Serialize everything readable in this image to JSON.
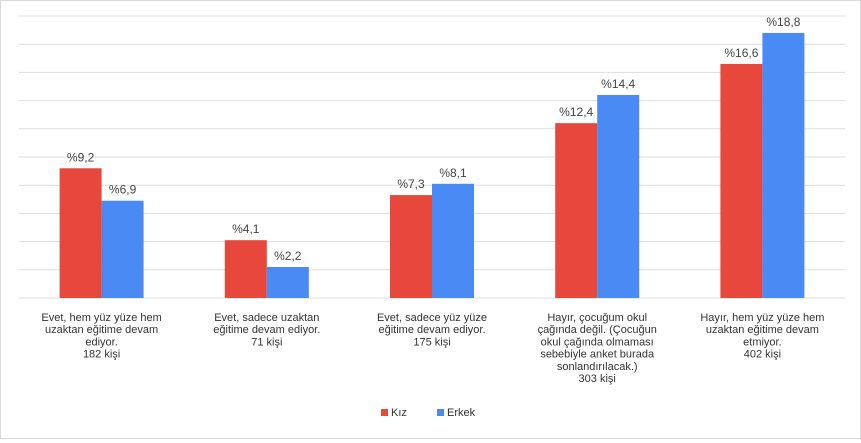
{
  "chart_data": {
    "type": "bar",
    "categories": [
      [
        "Evet, hem yüz yüze hem",
        "uzaktan eğitime devam",
        "ediyor.",
        "182 kişi"
      ],
      [
        "Evet, sadece uzaktan",
        "eğitime devam ediyor.",
        "71 kişi"
      ],
      [
        "Evet, sadece yüz yüze",
        "eğitime devam ediyor.",
        "175 kişi"
      ],
      [
        "Hayır, çocuğum okul",
        "çağında değil. (Çocuğun",
        "okul çağında olmaması",
        "sebebiyle anket burada",
        "sonlandırılacak.)",
        "303 kişi"
      ],
      [
        "Hayır, hem yüz yüze hem",
        "uzaktan eğitime devam",
        "etmiyor.",
        "402 kişi"
      ]
    ],
    "series": [
      {
        "name": "Kız",
        "color": "#e8473b",
        "values": [
          9.2,
          4.1,
          7.3,
          12.4,
          16.6
        ],
        "labels": [
          "%9,2",
          "%4,1",
          "%7,3",
          "%12,4",
          "%16,6"
        ]
      },
      {
        "name": "Erkek",
        "color": "#4a8af4",
        "values": [
          6.9,
          2.2,
          8.1,
          14.4,
          18.8
        ],
        "labels": [
          "%6,9",
          "%2,2",
          "%8,1",
          "%14,4",
          "%18,8"
        ]
      }
    ],
    "ylim": [
      0,
      20
    ],
    "grid": true,
    "legend": "bottom"
  }
}
